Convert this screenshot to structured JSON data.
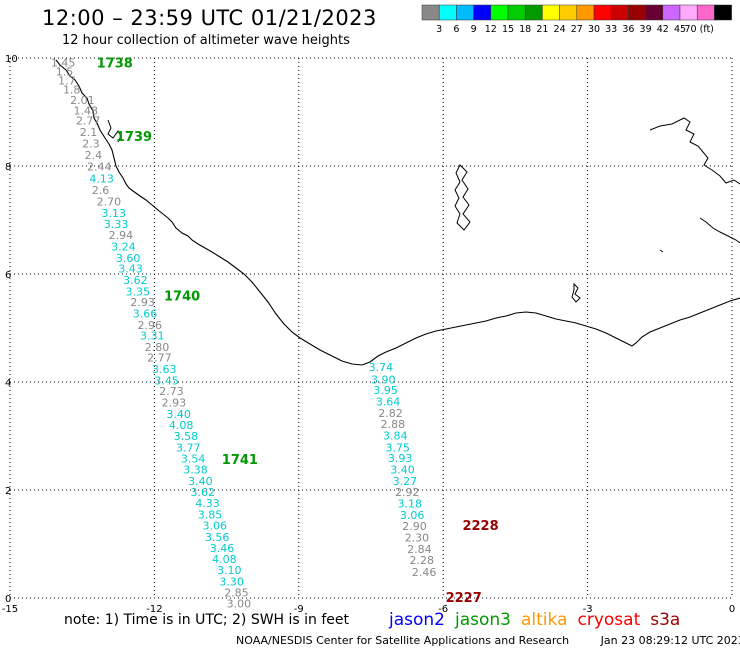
{
  "title": "12:00 – 23:59 UTC 01/21/2023",
  "subtitle": "12 hour collection of altimeter wave heights",
  "note": "note: 1) Time is in UTC; 2) SWH is in feet",
  "credit": "NOAA/NESDIS Center for Satellite Applications and Research",
  "timestamp": "Jan 23 08:29:12 UTC 2023",
  "satellites": [
    {
      "name": "jason2",
      "color": "#0000ff"
    },
    {
      "name": "jason3",
      "color": "#009900"
    },
    {
      "name": "altika",
      "color": "#ff9900"
    },
    {
      "name": "cryosat",
      "color": "#ff0000"
    },
    {
      "name": "s3a",
      "color": "#990000"
    }
  ],
  "colorbar": {
    "colors": [
      "#888888",
      "#00ffff",
      "#00bbff",
      "#0000ff",
      "#00ff00",
      "#00cc00",
      "#009900",
      "#ffff00",
      "#ffcc00",
      "#ff9900",
      "#ff0000",
      "#cc0000",
      "#990000",
      "#660033",
      "#cc66ff",
      "#ffaaff",
      "#ff66cc",
      "#000000"
    ],
    "labels": [
      "3",
      "6",
      "9",
      "12",
      "15",
      "18",
      "21",
      "24",
      "27",
      "30",
      "33",
      "36",
      "39",
      "42",
      "45",
      "70 (ft)"
    ]
  },
  "axes": {
    "x_ticks": [
      "-15",
      "-12",
      "-9",
      "-6",
      "-3",
      "0"
    ],
    "y_ticks": [
      "0",
      "2",
      "4",
      "6",
      "8",
      "10"
    ],
    "xlim": [
      -15,
      0
    ],
    "ylim": [
      0,
      10
    ]
  },
  "tracks": [
    {
      "id": "track-west",
      "color": "#009900",
      "time_labels": [
        {
          "text": "1738",
          "x": -13.2,
          "y": 9.92
        },
        {
          "text": "1739",
          "x": -12.8,
          "y": 8.56
        },
        {
          "text": "1740",
          "x": -11.8,
          "y": 5.6
        },
        {
          "text": "1741",
          "x": -10.6,
          "y": 2.57
        }
      ],
      "points": [
        {
          "v": "1.45",
          "x": -14.15,
          "y": 9.92,
          "c": "#888888"
        },
        {
          "v": "1.5",
          "x": -14.05,
          "y": 9.75,
          "c": "#888888"
        },
        {
          "v": "1.7",
          "x": -14.0,
          "y": 9.58,
          "c": "#888888"
        },
        {
          "v": "1.8",
          "x": -13.9,
          "y": 9.42,
          "c": "#888888"
        },
        {
          "v": "2.01",
          "x": -13.75,
          "y": 9.22,
          "c": "#888888"
        },
        {
          "v": "1.48",
          "x": -13.68,
          "y": 9.03,
          "c": "#888888"
        },
        {
          "v": "2.77",
          "x": -13.63,
          "y": 8.84,
          "c": "#888888"
        },
        {
          "v": "2.1",
          "x": -13.55,
          "y": 8.63,
          "c": "#888888"
        },
        {
          "v": "2.3",
          "x": -13.5,
          "y": 8.42,
          "c": "#888888"
        },
        {
          "v": "2.4",
          "x": -13.45,
          "y": 8.2,
          "c": "#888888"
        },
        {
          "v": "2.44",
          "x": -13.4,
          "y": 7.99,
          "c": "#888888"
        },
        {
          "v": "4.13",
          "x": -13.35,
          "y": 7.77,
          "c": "#00cccc"
        },
        {
          "v": "2.6",
          "x": -13.3,
          "y": 7.56,
          "c": "#888888"
        },
        {
          "v": "2.70",
          "x": -13.2,
          "y": 7.34,
          "c": "#888888"
        },
        {
          "v": "3.13",
          "x": -13.1,
          "y": 7.13,
          "c": "#00cccc"
        },
        {
          "v": "3.33",
          "x": -13.05,
          "y": 6.93,
          "c": "#00cccc"
        },
        {
          "v": "2.94",
          "x": -12.95,
          "y": 6.72,
          "c": "#888888"
        },
        {
          "v": "3.24",
          "x": -12.9,
          "y": 6.51,
          "c": "#00cccc"
        },
        {
          "v": "3.60",
          "x": -12.8,
          "y": 6.3,
          "c": "#00cccc"
        },
        {
          "v": "3.43",
          "x": -12.75,
          "y": 6.1,
          "c": "#00cccc"
        },
        {
          "v": "3.62",
          "x": -12.65,
          "y": 5.89,
          "c": "#00cccc"
        },
        {
          "v": "3.35",
          "x": -12.6,
          "y": 5.68,
          "c": "#00cccc"
        },
        {
          "v": "2.93",
          "x": -12.5,
          "y": 5.48,
          "c": "#888888"
        },
        {
          "v": "3.66",
          "x": -12.45,
          "y": 5.27,
          "c": "#00cccc"
        },
        {
          "v": "2.96",
          "x": -12.35,
          "y": 5.06,
          "c": "#888888"
        },
        {
          "v": "3.31",
          "x": -12.3,
          "y": 4.86,
          "c": "#00cccc"
        },
        {
          "v": "2.80",
          "x": -12.2,
          "y": 4.65,
          "c": "#888888"
        },
        {
          "v": "2.77",
          "x": -12.15,
          "y": 4.45,
          "c": "#888888"
        },
        {
          "v": "3.63",
          "x": -12.05,
          "y": 4.24,
          "c": "#00cccc"
        },
        {
          "v": "3.45",
          "x": -12.0,
          "y": 4.03,
          "c": "#00cccc"
        },
        {
          "v": "2.73",
          "x": -11.9,
          "y": 3.83,
          "c": "#888888"
        },
        {
          "v": "2.93",
          "x": -11.85,
          "y": 3.62,
          "c": "#888888"
        },
        {
          "v": "3.40",
          "x": -11.75,
          "y": 3.41,
          "c": "#00cccc"
        },
        {
          "v": "4.08",
          "x": -11.7,
          "y": 3.2,
          "c": "#00cccc"
        },
        {
          "v": "3.58",
          "x": -11.6,
          "y": 3.0,
          "c": "#00cccc"
        },
        {
          "v": "3.77",
          "x": -11.55,
          "y": 2.79,
          "c": "#00cccc"
        },
        {
          "v": "3.54",
          "x": -11.45,
          "y": 2.58,
          "c": "#00cccc"
        },
        {
          "v": "3.38",
          "x": -11.4,
          "y": 2.38,
          "c": "#00cccc"
        },
        {
          "v": "3.40",
          "x": -11.3,
          "y": 2.17,
          "c": "#00cccc"
        },
        {
          "v": "3.62",
          "x": -11.25,
          "y": 1.96,
          "c": "#00cccc"
        },
        {
          "v": "4.33",
          "x": -11.15,
          "y": 1.76,
          "c": "#00cccc"
        },
        {
          "v": "3.85",
          "x": -11.1,
          "y": 1.55,
          "c": "#00cccc"
        },
        {
          "v": "3.06",
          "x": -11.0,
          "y": 1.34,
          "c": "#00cccc"
        },
        {
          "v": "3.56",
          "x": -10.95,
          "y": 1.13,
          "c": "#00cccc"
        },
        {
          "v": "3.46",
          "x": -10.85,
          "y": 0.93,
          "c": "#00cccc"
        },
        {
          "v": "4.08",
          "x": -10.8,
          "y": 0.72,
          "c": "#00cccc"
        },
        {
          "v": "3.10",
          "x": -10.7,
          "y": 0.52,
          "c": "#00cccc"
        },
        {
          "v": "3.30",
          "x": -10.65,
          "y": 0.31,
          "c": "#00cccc"
        },
        {
          "v": "2.85",
          "x": -10.55,
          "y": 0.1,
          "c": "#888888"
        },
        {
          "v": "3.00",
          "x": -10.5,
          "y": -0.1,
          "c": "#888888"
        }
      ]
    },
    {
      "id": "track-east",
      "color": "#990000",
      "time_labels": [
        {
          "text": "2228",
          "x": -5.6,
          "y": 1.35
        },
        {
          "text": "2227",
          "x": -5.95,
          "y": 0.02
        }
      ],
      "points": [
        {
          "v": "3.74",
          "x": -7.55,
          "y": 4.28,
          "c": "#00cccc"
        },
        {
          "v": "3.90",
          "x": -7.5,
          "y": 4.05,
          "c": "#00cccc"
        },
        {
          "v": "3.95",
          "x": -7.45,
          "y": 3.85,
          "c": "#00cccc"
        },
        {
          "v": "3.64",
          "x": -7.4,
          "y": 3.64,
          "c": "#00cccc"
        },
        {
          "v": "2.82",
          "x": -7.35,
          "y": 3.43,
          "c": "#888888"
        },
        {
          "v": "2.88",
          "x": -7.3,
          "y": 3.22,
          "c": "#888888"
        },
        {
          "v": "3.84",
          "x": -7.25,
          "y": 3.01,
          "c": "#00cccc"
        },
        {
          "v": "3.75",
          "x": -7.2,
          "y": 2.79,
          "c": "#00cccc"
        },
        {
          "v": "3.93",
          "x": -7.15,
          "y": 2.59,
          "c": "#00cccc"
        },
        {
          "v": "3.40",
          "x": -7.1,
          "y": 2.38,
          "c": "#00cccc"
        },
        {
          "v": "3.27",
          "x": -7.05,
          "y": 2.17,
          "c": "#00cccc"
        },
        {
          "v": "2.92",
          "x": -7.0,
          "y": 1.96,
          "c": "#888888"
        },
        {
          "v": "3.18",
          "x": -6.95,
          "y": 1.75,
          "c": "#00cccc"
        },
        {
          "v": "3.06",
          "x": -6.9,
          "y": 1.54,
          "c": "#00cccc"
        },
        {
          "v": "2.90",
          "x": -6.85,
          "y": 1.33,
          "c": "#888888"
        },
        {
          "v": "2.30",
          "x": -6.8,
          "y": 1.12,
          "c": "#888888"
        },
        {
          "v": "2.84",
          "x": -6.75,
          "y": 0.91,
          "c": "#888888"
        },
        {
          "v": "2.28",
          "x": -6.7,
          "y": 0.7,
          "c": "#888888"
        },
        {
          "v": "2.46",
          "x": -6.65,
          "y": 0.48,
          "c": "#888888"
        }
      ]
    }
  ]
}
